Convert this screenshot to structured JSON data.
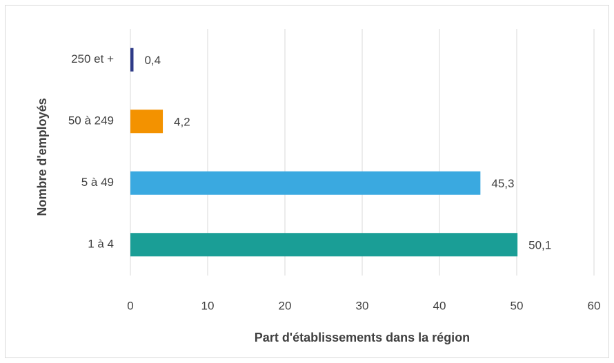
{
  "chart_data": {
    "type": "bar",
    "orientation": "horizontal",
    "categories": [
      "250 et +",
      "50 à 249",
      "5 à 49",
      "1 à 4"
    ],
    "values": [
      0.4,
      4.2,
      45.3,
      50.1
    ],
    "value_labels": [
      "0,4",
      "4,2",
      "45,3",
      "50,1"
    ],
    "colors": [
      "#2e3a87",
      "#f39200",
      "#3aa9e0",
      "#1a9e96"
    ],
    "xlabel": "Part d'établissements dans la région",
    "ylabel": "Nombre d'employés",
    "xlim": [
      0,
      60
    ],
    "xticks": [
      0,
      10,
      20,
      30,
      40,
      50,
      60
    ],
    "grid": true
  }
}
